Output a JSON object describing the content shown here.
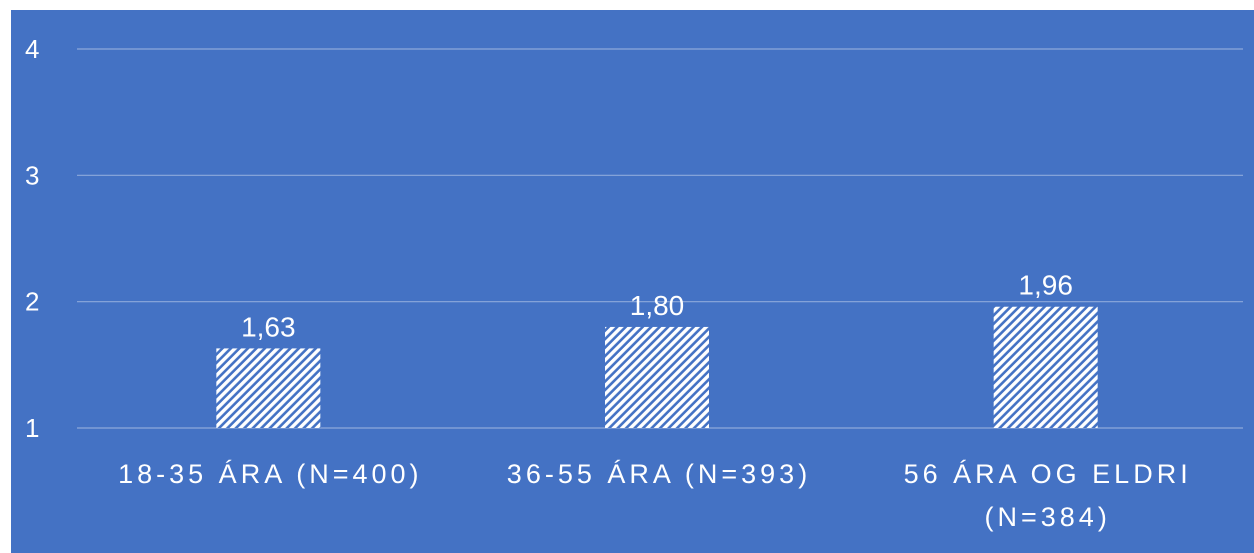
{
  "chart_data": {
    "type": "bar",
    "categories": [
      [
        "18-35 ÁRA (N=400)"
      ],
      [
        "36-55 ÁRA (N=393)"
      ],
      [
        "56 ÁRA OG ELDRI",
        "(N=384)"
      ]
    ],
    "values": [
      1.63,
      1.8,
      1.96
    ],
    "data_labels": [
      "1,63",
      "1,80",
      "1,96"
    ],
    "y_ticks": [
      "1",
      "2",
      "3",
      "4"
    ],
    "ylim": [
      1,
      4
    ],
    "grid": true,
    "legend": "none",
    "title": "",
    "xlabel": "",
    "ylabel": ""
  },
  "colors": {
    "background": "#4472c4",
    "bar_fill": "#ffffff",
    "bar_pattern": "diagonal-stripes",
    "gridline": "#8ea9db",
    "text": "#ffffff"
  }
}
